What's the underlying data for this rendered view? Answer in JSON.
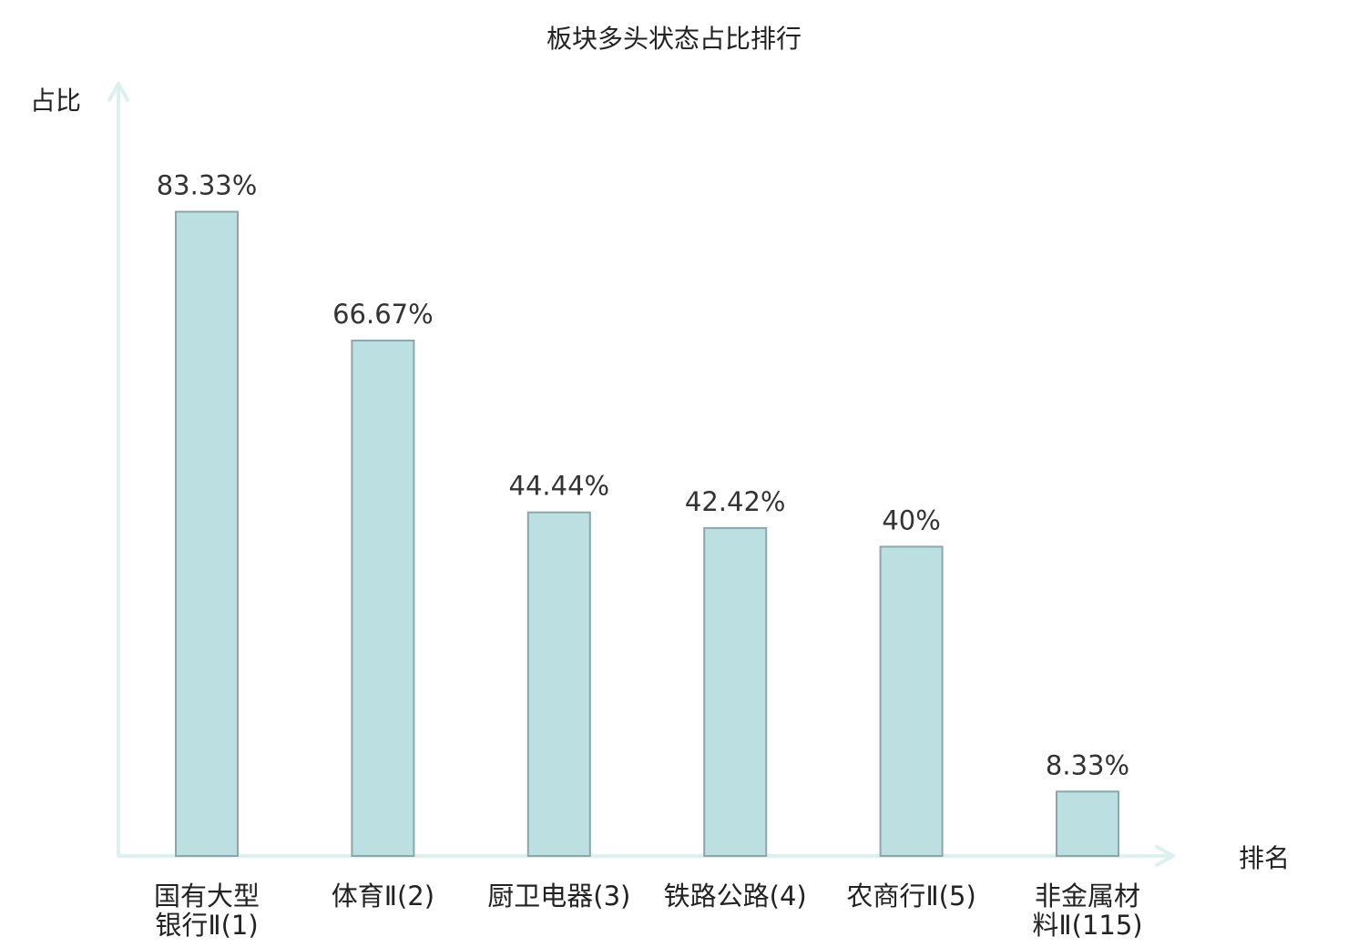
{
  "chart_data": {
    "type": "bar",
    "title": "板块多头状态占比排行",
    "ylabel": "占比",
    "xlabel": "排名",
    "ylim": [
      0,
      100
    ],
    "grid": false,
    "categories": [
      [
        "国有大型",
        "银行Ⅱ(1)"
      ],
      [
        "体育Ⅱ(2)"
      ],
      [
        "厨卫电器(3)"
      ],
      [
        "铁路公路(4)"
      ],
      [
        "农商行Ⅱ(5)"
      ],
      [
        "非金属材",
        "料Ⅱ(115)"
      ]
    ],
    "values": [
      83.33,
      66.67,
      44.44,
      42.42,
      40,
      8.33
    ],
    "value_labels": [
      "83.33%",
      "66.67%",
      "44.44%",
      "42.42%",
      "40%",
      "8.33%"
    ],
    "highlight_index": 5
  },
  "colors": {
    "bar_fill": "#bce0e2",
    "bar_stroke": "#8aa8aa",
    "axis": "#dcf1ee",
    "highlight_text": "#e8191b",
    "text": "#222222"
  }
}
